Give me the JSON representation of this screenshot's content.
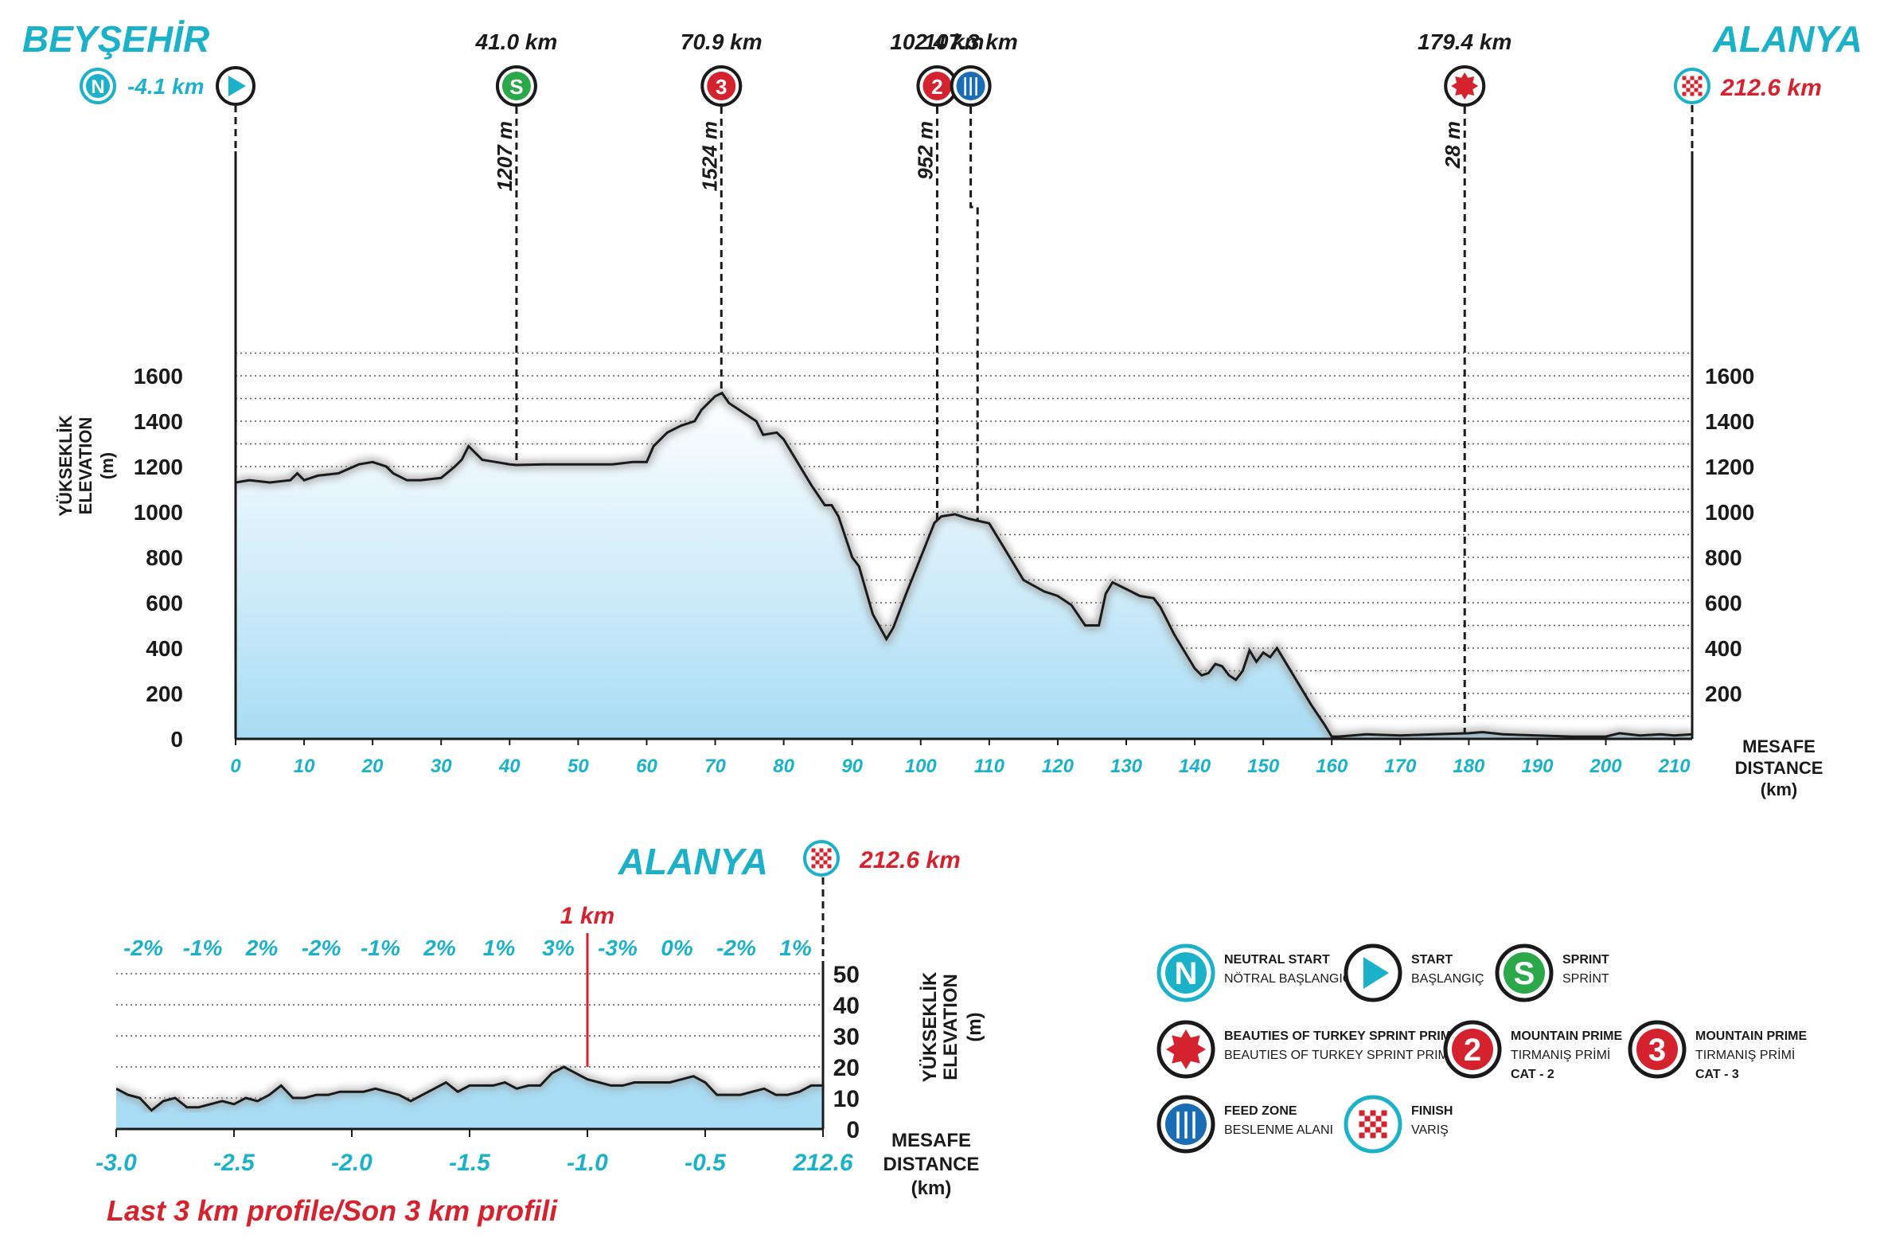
{
  "colors": {
    "cyan": "#1bb2c9",
    "red": "#d4232e",
    "green": "#2aa84a",
    "blue": "#1a6db5",
    "profile_fill_top": "#ffffff",
    "profile_fill_bottom": "#a8dcf4",
    "line": "#1a1a1a"
  },
  "header": {
    "start_city": "BEYŞEHİR",
    "finish_city": "ALANYA",
    "neutral_distance": "-4.1 km",
    "finish_distance": "212.6 km",
    "neutral_letter": "N",
    "sprint_letter": "S",
    "cat3_number": "3",
    "cat2_number": "2"
  },
  "markers": [
    {
      "id": "sprint",
      "km": 41.0,
      "label": "41.0 km",
      "elevation_label": "1207 m",
      "elevation": 1207,
      "icon": "sprint-icon"
    },
    {
      "id": "cat3",
      "km": 70.9,
      "label": "70.9 km",
      "elevation_label": "1524 m",
      "elevation": 1524,
      "icon": "mountain-cat3-icon"
    },
    {
      "id": "cat2",
      "km": 102.4,
      "label": "102.4 km",
      "elevation_label": "952 m",
      "elevation": 952,
      "icon": "mountain-cat2-icon"
    },
    {
      "id": "feed",
      "km": 107.3,
      "label": "107.3 km",
      "elevation_label": "",
      "icon": "feed-zone-icon"
    },
    {
      "id": "beauties",
      "km": 179.4,
      "label": "179.4 km",
      "elevation_label": "28 m",
      "elevation": 28,
      "icon": "beauties-sprint-icon"
    }
  ],
  "main_axis": {
    "y_label_line1": "YÜKSEKLİK",
    "y_label_line2": "ELEVATION",
    "y_label_unit": "(m)",
    "x_label_line1": "MESAFE",
    "x_label_line2": "DISTANCE",
    "x_label_unit": "(km)"
  },
  "chart_data": [
    {
      "type": "area",
      "title": "",
      "xlabel": "MESAFE DISTANCE (km)",
      "ylabel": "YÜKSEKLİK ELEVATION (m)",
      "xlim": [
        0,
        212.6
      ],
      "ylim": [
        0,
        1700
      ],
      "grid": true,
      "x_ticks": [
        0,
        10,
        20,
        30,
        40,
        50,
        60,
        70,
        80,
        90,
        100,
        110,
        120,
        130,
        140,
        150,
        160,
        170,
        180,
        190,
        200,
        210
      ],
      "y_ticks": [
        0,
        200,
        400,
        600,
        800,
        1000,
        1200,
        1400,
        1600
      ],
      "series": [
        {
          "x": [
            0,
            2,
            5,
            8,
            9,
            10,
            12,
            15,
            18,
            20,
            22,
            23,
            25,
            27,
            30,
            32,
            33,
            34,
            36,
            38,
            40,
            41,
            45,
            50,
            55,
            58,
            60,
            61,
            63,
            65,
            67,
            68,
            70,
            71,
            72,
            74,
            76,
            77,
            79,
            80,
            82,
            84,
            86,
            87,
            88,
            90,
            91,
            93,
            95,
            96,
            98,
            100,
            102,
            103,
            105,
            107,
            110,
            112,
            115,
            118,
            120,
            122,
            124,
            126,
            127,
            128,
            130,
            132,
            134,
            135,
            137,
            139,
            140,
            141,
            142,
            143,
            144,
            145,
            146,
            147,
            148,
            149,
            150,
            151,
            152,
            153,
            155,
            157,
            159,
            160,
            161,
            163,
            165,
            170,
            175,
            180,
            182,
            185,
            190,
            195,
            200,
            202,
            205,
            208,
            210,
            212.6
          ],
          "y": [
            1130,
            1140,
            1130,
            1140,
            1170,
            1140,
            1160,
            1170,
            1210,
            1220,
            1200,
            1170,
            1140,
            1140,
            1150,
            1200,
            1230,
            1290,
            1230,
            1220,
            1210,
            1207,
            1210,
            1210,
            1210,
            1220,
            1220,
            1290,
            1350,
            1380,
            1400,
            1450,
            1510,
            1524,
            1480,
            1440,
            1400,
            1340,
            1350,
            1320,
            1220,
            1120,
            1030,
            1030,
            980,
            800,
            760,
            550,
            440,
            490,
            650,
            800,
            952,
            980,
            990,
            970,
            950,
            850,
            700,
            650,
            630,
            590,
            500,
            500,
            640,
            690,
            660,
            630,
            620,
            580,
            460,
            360,
            310,
            280,
            290,
            330,
            320,
            280,
            260,
            300,
            390,
            340,
            380,
            360,
            400,
            350,
            250,
            150,
            60,
            10,
            10,
            15,
            20,
            15,
            20,
            25,
            30,
            20,
            15,
            10,
            10,
            25,
            15,
            20,
            15,
            20
          ]
        }
      ]
    },
    {
      "type": "area",
      "title": "Last 3 km profile/Son 3 km profili",
      "xlabel": "MESAFE DISTANCE (km)",
      "ylabel": "YÜKSEKLİK ELEVATION (m)",
      "xlim": [
        -3.0,
        0
      ],
      "ylim": [
        0,
        50
      ],
      "grid": true,
      "x_tick_labels": [
        "-3.0",
        "-2.5",
        "-2.0",
        "-1.5",
        "-1.0",
        "-0.5",
        "212.6"
      ],
      "y_ticks": [
        0,
        10,
        20,
        30,
        40,
        50
      ],
      "gradients": [
        "-2%",
        "-1%",
        "2%",
        "-2%",
        "-1%",
        "2%",
        "1%",
        "3%",
        "-3%",
        "0%",
        "-2%",
        "1%"
      ],
      "annotation": "1 km",
      "series": [
        {
          "x": [
            -3.0,
            -2.95,
            -2.9,
            -2.85,
            -2.8,
            -2.75,
            -2.7,
            -2.65,
            -2.6,
            -2.55,
            -2.5,
            -2.45,
            -2.4,
            -2.35,
            -2.3,
            -2.25,
            -2.2,
            -2.15,
            -2.1,
            -2.05,
            -2.0,
            -1.95,
            -1.9,
            -1.85,
            -1.8,
            -1.75,
            -1.7,
            -1.65,
            -1.6,
            -1.55,
            -1.5,
            -1.45,
            -1.4,
            -1.35,
            -1.3,
            -1.25,
            -1.2,
            -1.15,
            -1.1,
            -1.05,
            -1.0,
            -0.95,
            -0.9,
            -0.85,
            -0.8,
            -0.75,
            -0.7,
            -0.65,
            -0.6,
            -0.55,
            -0.5,
            -0.45,
            -0.4,
            -0.35,
            -0.3,
            -0.25,
            -0.2,
            -0.15,
            -0.1,
            -0.05,
            0.0
          ],
          "y": [
            13,
            11,
            10,
            6,
            9,
            10,
            7,
            7,
            8,
            9,
            8,
            10,
            9,
            11,
            14,
            10,
            10,
            11,
            11,
            12,
            12,
            12,
            13,
            12,
            11,
            9,
            11,
            13,
            15,
            12,
            14,
            14,
            14,
            15,
            13,
            14,
            14,
            18,
            20,
            18,
            16,
            15,
            14,
            14,
            15,
            15,
            15,
            15,
            16,
            17,
            15,
            11,
            11,
            11,
            12,
            13,
            11,
            11,
            12,
            14,
            14
          ]
        }
      ]
    }
  ],
  "last3": {
    "city": "ALANYA",
    "distance": "212.6 km",
    "one_km": "1 km",
    "title": "Last 3 km profile/Son 3 km profili",
    "y_label_line1": "YÜKSEKLİK",
    "y_label_line2": "ELEVATION",
    "y_label_unit": "(m)",
    "x_label_line1": "MESAFE",
    "x_label_line2": "DISTANCE",
    "x_label_unit": "(km)"
  },
  "legend": [
    {
      "icon": "neutral-start-icon",
      "symbol": "N",
      "title": "NEUTRAL START",
      "subtitle": "NÖTRAL BAŞLANGIÇ",
      "extra": ""
    },
    {
      "icon": "start-icon",
      "symbol": "",
      "title": "START",
      "subtitle": "BAŞLANGIÇ",
      "extra": ""
    },
    {
      "icon": "sprint-icon",
      "symbol": "S",
      "title": "SPRINT",
      "subtitle": "SPRİNT",
      "extra": ""
    },
    {
      "icon": "beauties-sprint-icon",
      "symbol": "",
      "title": "BEAUTIES OF TURKEY SPRINT PRIME",
      "subtitle": "BEAUTIES OF TURKEY SPRINT PRIMI",
      "extra": ""
    },
    {
      "icon": "mountain-cat2-icon",
      "symbol": "2",
      "title": "MOUNTAIN PRIME",
      "subtitle": "TIRMANIŞ PRİMİ",
      "extra": "CAT - 2"
    },
    {
      "icon": "mountain-cat3-icon",
      "symbol": "3",
      "title": "MOUNTAIN PRIME",
      "subtitle": "TIRMANIŞ PRİMİ",
      "extra": "CAT - 3"
    },
    {
      "icon": "feed-zone-icon",
      "symbol": "",
      "title": "FEED ZONE",
      "subtitle": "BESLENME ALANI",
      "extra": ""
    },
    {
      "icon": "finish-icon",
      "symbol": "",
      "title": "FINISH",
      "subtitle": "VARIŞ",
      "extra": ""
    }
  ]
}
